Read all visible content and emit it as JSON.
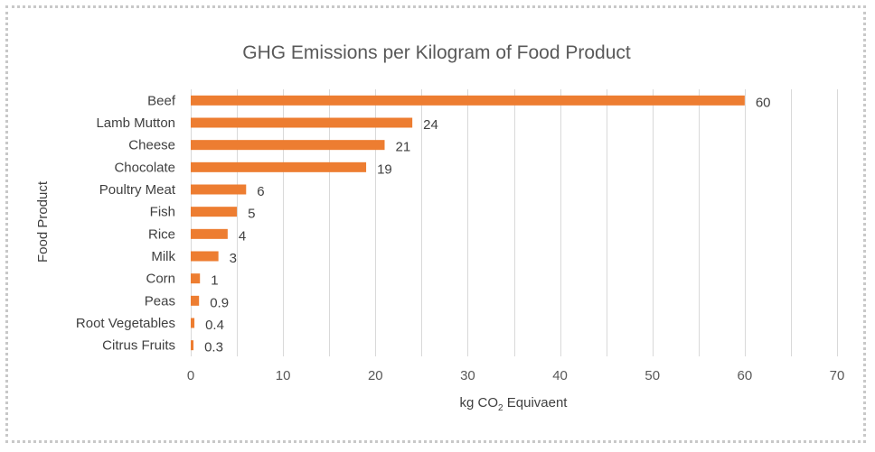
{
  "colors": {
    "bar": "#ed7d31",
    "grid": "#d9d9d9",
    "text": "#404040",
    "title": "#595959"
  },
  "chart_data": {
    "type": "bar",
    "orientation": "horizontal",
    "title": "GHG Emissions per Kilogram of Food Product",
    "xlabel": "kg CO2 Equivaent",
    "xlabel_parts": {
      "pre": "kg CO",
      "sub": "2",
      "post": " Equivaent"
    },
    "ylabel": "Food Product",
    "categories": [
      "Beef",
      "Lamb Mutton",
      "Cheese",
      "Chocolate",
      "Poultry Meat",
      "Fish",
      "Rice",
      "Milk",
      "Corn",
      "Peas",
      "Root Vegetables",
      "Citrus Fruits"
    ],
    "values": [
      60,
      24,
      21,
      19,
      6,
      5,
      4,
      3,
      1,
      0.9,
      0.4,
      0.3
    ],
    "data_labels": [
      "60",
      "24",
      "21",
      "19",
      "6",
      "5",
      "4",
      "3",
      "1",
      "0.9",
      "0.4",
      "0.3"
    ],
    "xlim": [
      0,
      70
    ],
    "xticks": [
      "0",
      "10",
      "20",
      "30",
      "40",
      "50",
      "60",
      "70"
    ],
    "grid": true,
    "legend": "none"
  }
}
